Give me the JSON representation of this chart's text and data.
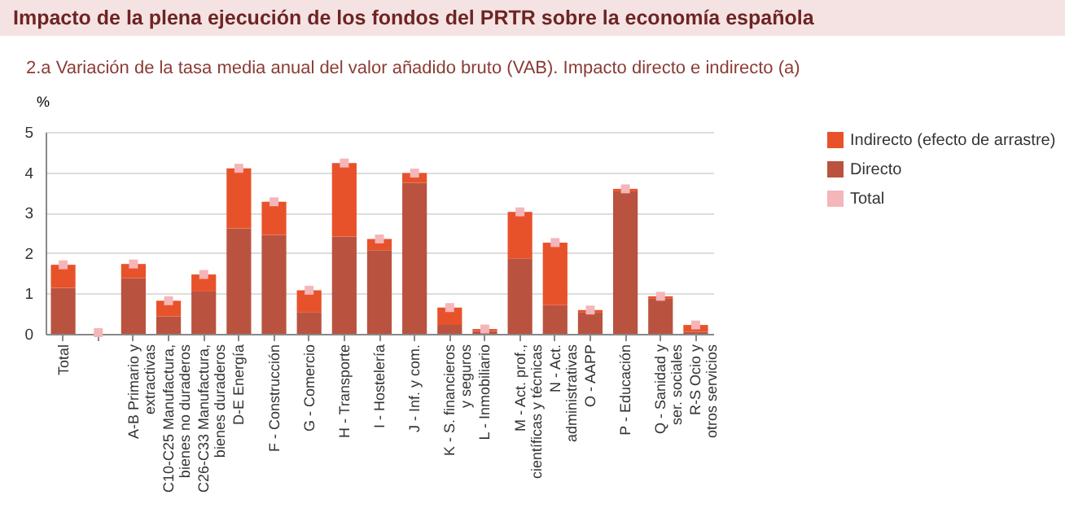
{
  "chart_data": {
    "type": "bar",
    "title": "Impacto de la plena ejecución de los fondos del PRTR sobre la economía española",
    "subtitle": "2.a Variación de la tasa media anual del valor añadido bruto (VAB). Impacto directo e indirecto (a)",
    "ylabel": "%",
    "categories": [
      "Total",
      null,
      "A-B Primario y\nextractivas",
      "C10-C25 Manufactura,\nbienes no duraderos",
      "C26-C33 Manufactura,\nbienes duraderos",
      "D-E Energía",
      "F - Construcción",
      "G - Comercio",
      "H - Transporte",
      "I - Hostelería",
      "J - Inf. y com.",
      "K - S. financieros\ny seguros",
      "L - Inmobiliario",
      "M - Act. prof.,\ncientíficas y técnicas",
      "N - Act.\nadministrativas",
      "O - AAPP",
      "P - Educación",
      "Q - Sanidad y\nser. sociales",
      "R-S Ocio y\notros servicios"
    ],
    "stacked": true,
    "series": [
      {
        "name": "Directo",
        "color": "#b9533f",
        "values": [
          1.14,
          null,
          1.38,
          0.43,
          1.05,
          2.61,
          2.45,
          0.54,
          2.41,
          2.07,
          3.74,
          0.22,
          0.07,
          1.87,
          0.71,
          0.54,
          3.53,
          0.87,
          0.05
        ]
      },
      {
        "name": "Indirecto (efecto de arrastre)",
        "color": "#e8522a",
        "values": [
          0.57,
          null,
          0.35,
          0.39,
          0.42,
          1.49,
          0.82,
          0.54,
          1.82,
          0.28,
          0.24,
          0.43,
          0.05,
          1.15,
          1.55,
          0.05,
          0.06,
          0.06,
          0.17
        ]
      },
      {
        "name": "Total",
        "type": "scatter",
        "marker": "square",
        "color": "#f4b6b9",
        "values": [
          1.71,
          0.03,
          1.73,
          0.82,
          1.47,
          4.1,
          3.27,
          1.08,
          4.23,
          2.35,
          3.98,
          0.65,
          0.12,
          3.02,
          2.26,
          0.59,
          3.59,
          0.93,
          0.22
        ]
      }
    ],
    "ylim": [
      0,
      5
    ],
    "yticks": [
      0,
      1,
      2,
      3,
      4,
      5
    ],
    "grid": "y",
    "legend": "right"
  }
}
